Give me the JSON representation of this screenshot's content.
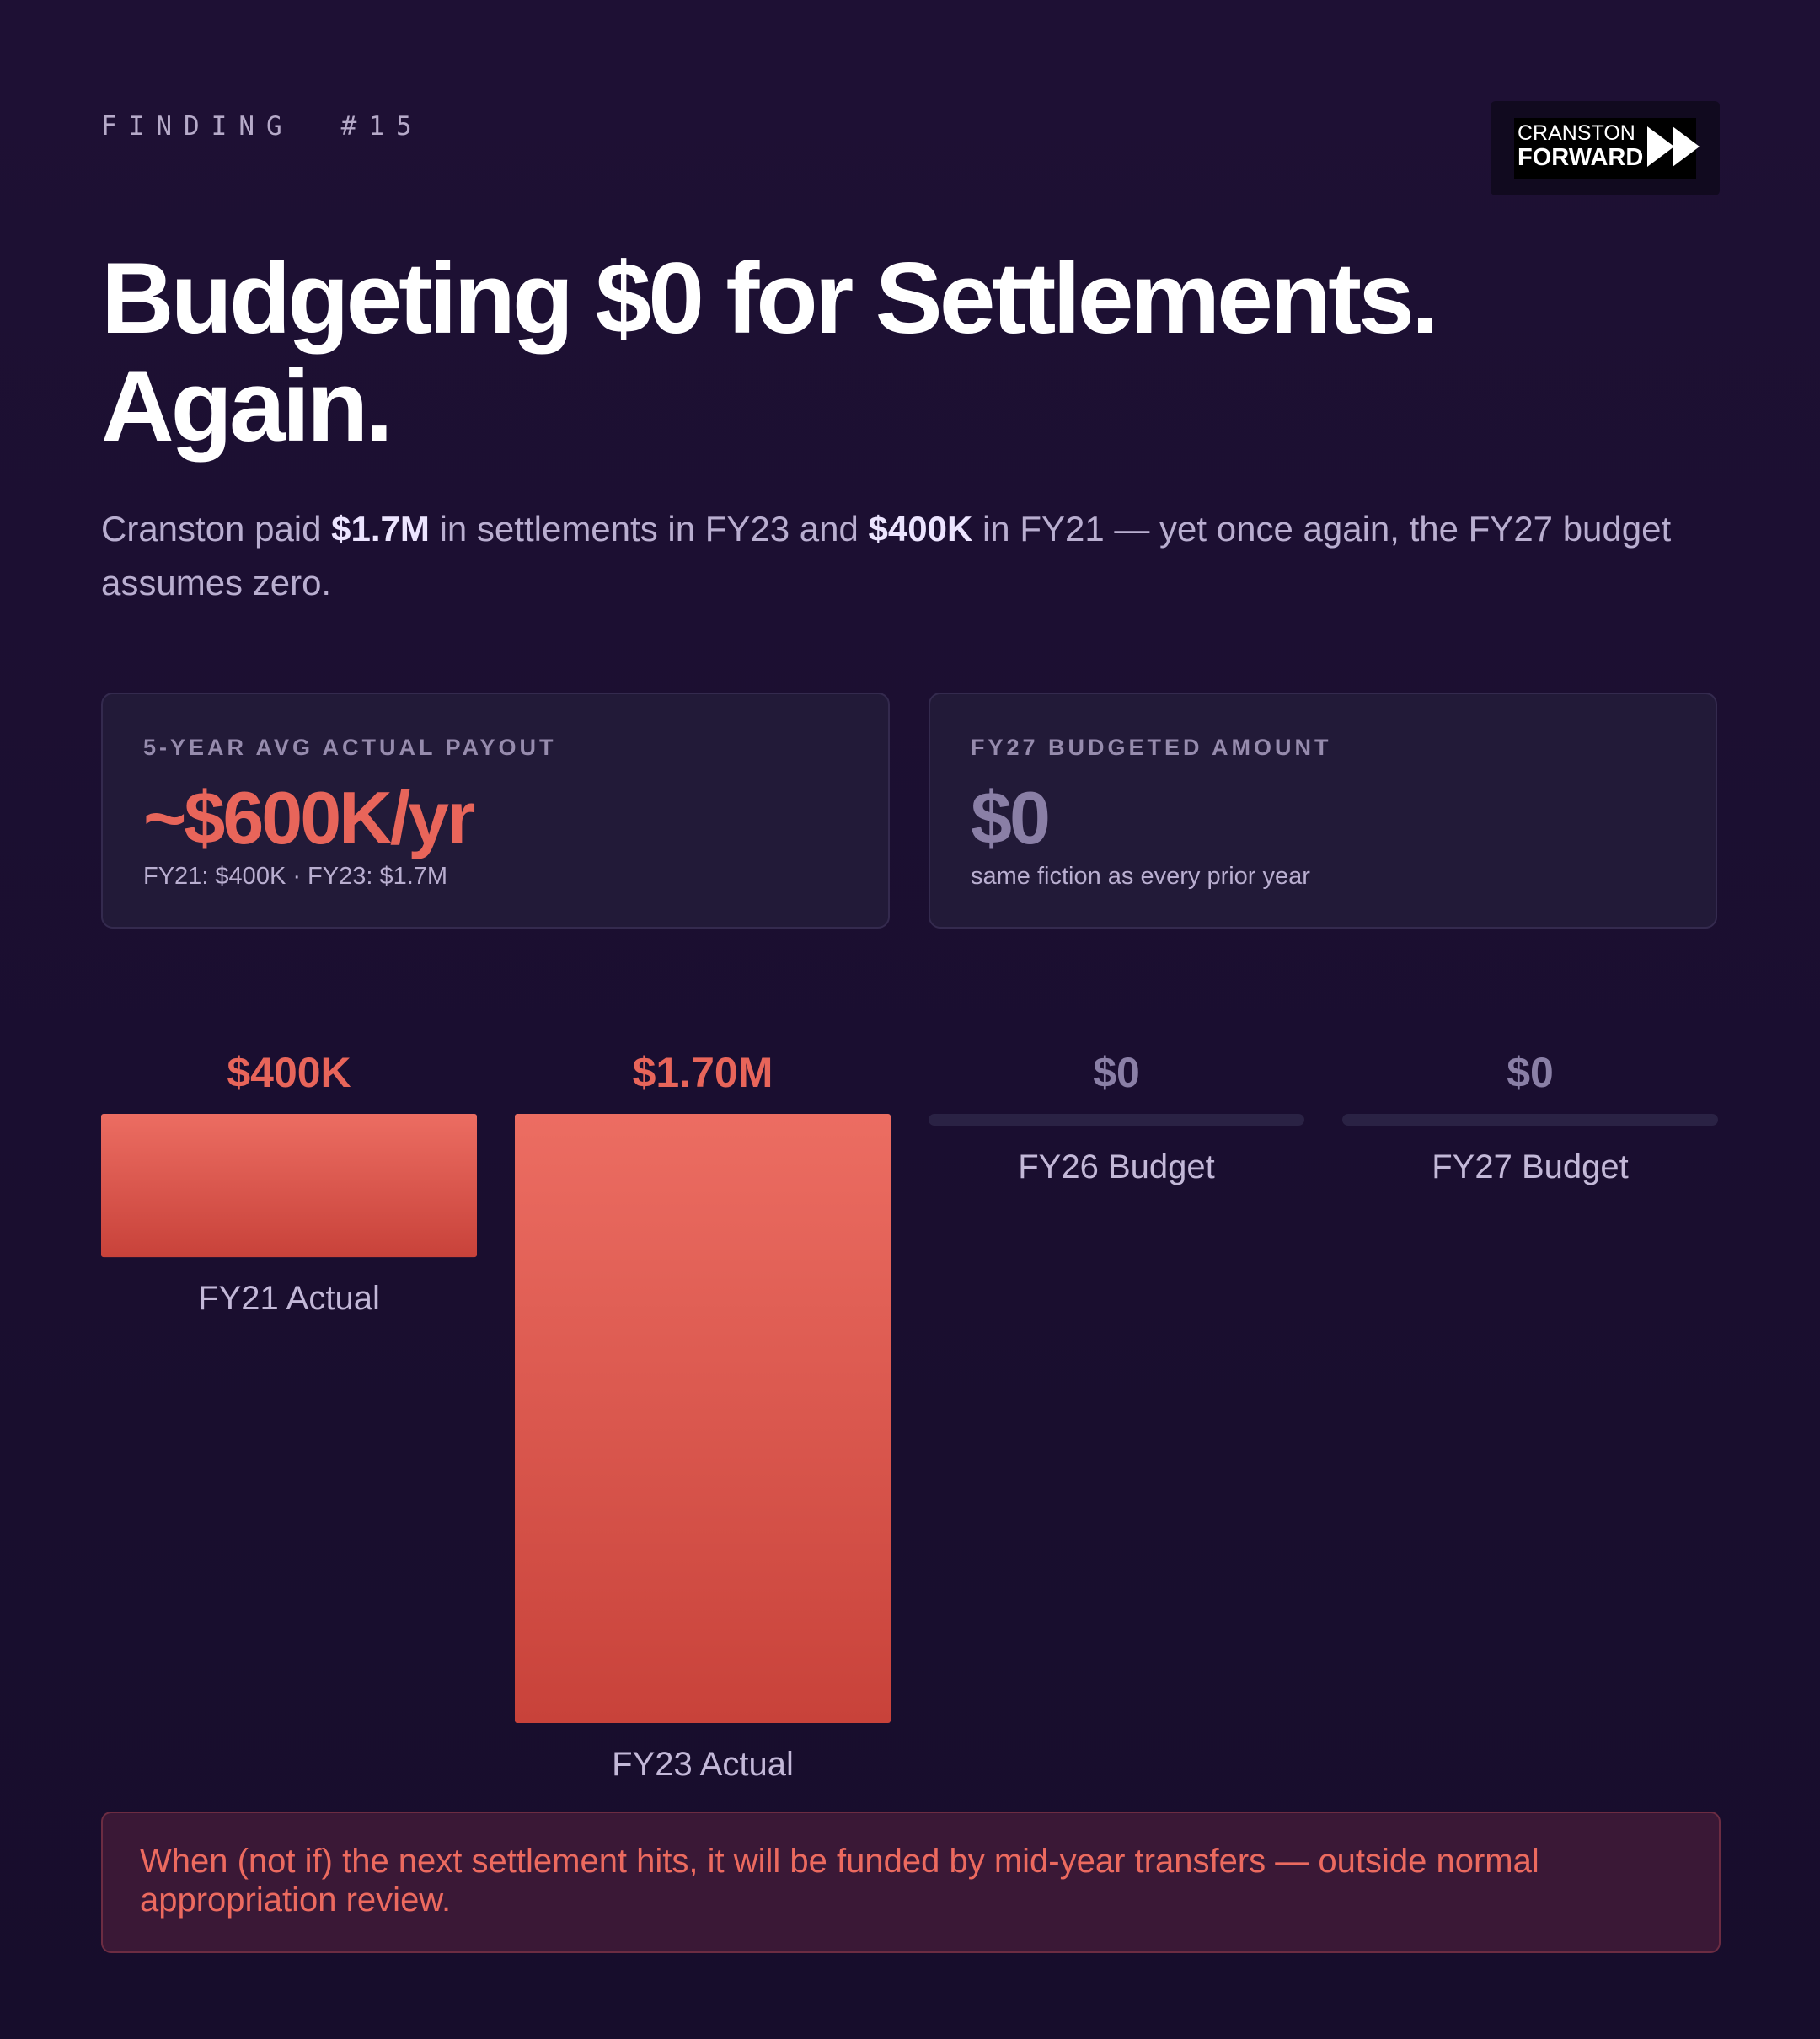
{
  "header": {
    "eyebrow_label": "FINDING",
    "eyebrow_number": "#15",
    "logo_line1": "CRANSTON",
    "logo_line2": "FORWARD"
  },
  "title_line1": "Budgeting $0 for Settlements.",
  "title_line2": "Again.",
  "subtitle": {
    "part1": "Cranston paid ",
    "amount1": "$1.7M",
    "part2": " in settlements in FY23 and ",
    "amount2": "$400K",
    "part3": " in FY21 — yet once again, the FY27 budget assumes zero."
  },
  "cards": [
    {
      "label": "5-YEAR AVG ACTUAL PAYOUT",
      "value": "~$600K/yr",
      "note": "FY21: $400K · FY23: $1.7M"
    },
    {
      "label": "FY27 BUDGETED AMOUNT",
      "value": "$0",
      "note": "same fiction as every prior year"
    }
  ],
  "chart_data": {
    "type": "bar",
    "categories": [
      "FY21 Actual",
      "FY23 Actual",
      "FY26 Budget",
      "FY27 Budget"
    ],
    "values": [
      400000,
      1700000,
      0,
      0
    ],
    "value_labels": [
      "$400K",
      "$1.70M",
      "$0",
      "$0"
    ],
    "colors": {
      "actual": "#e8675c",
      "actual_dark": "#c8423a",
      "budget": "#2a2244",
      "label_actual": "#e8655a",
      "label_budget": "#8a7fa6",
      "category": "#c3b8d8"
    }
  },
  "callout": "When (not if) the next settlement hits, it will be funded by mid-year transfers — outside normal appropriation review."
}
